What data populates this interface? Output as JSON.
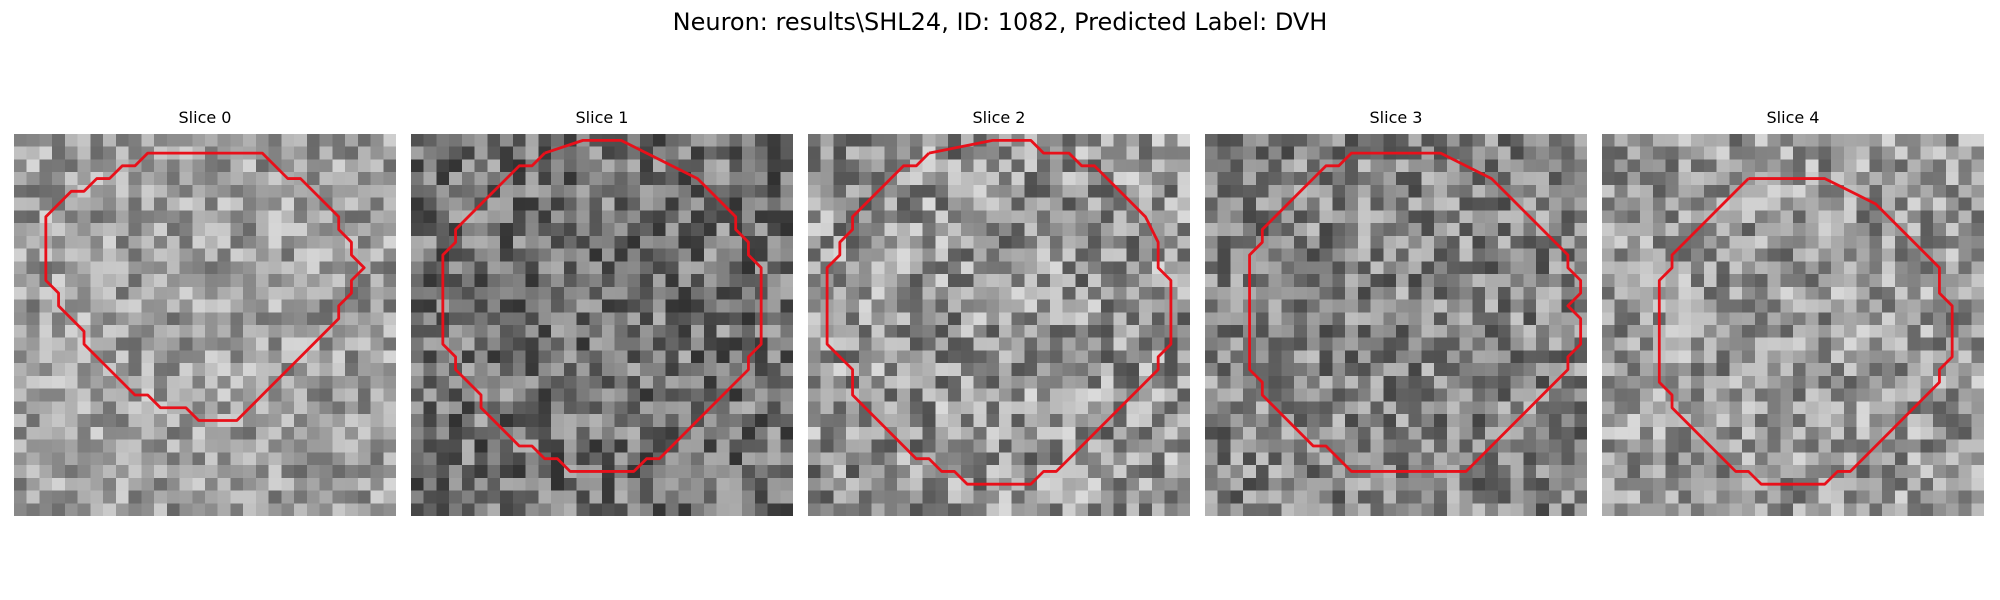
{
  "figure": {
    "title": "Neuron: results\\SHL24, ID: 1082, Predicted Label: DVH"
  },
  "colors": {
    "contour": "#e8101a",
    "background": "#ffffff"
  },
  "panels": [
    {
      "label": "Slice 0",
      "texture": {
        "mean": 0.62,
        "contrast": 0.22,
        "seed": 11
      },
      "contour": [
        [
          13,
          1
        ],
        [
          19,
          1
        ],
        [
          21,
          3
        ],
        [
          22,
          3
        ],
        [
          24,
          5
        ],
        [
          25,
          6
        ],
        [
          25,
          7
        ],
        [
          26,
          8
        ],
        [
          26,
          9
        ],
        [
          27,
          10
        ],
        [
          26,
          11
        ],
        [
          26,
          12
        ],
        [
          25,
          13
        ],
        [
          25,
          14
        ],
        [
          24,
          15
        ],
        [
          23,
          16
        ],
        [
          22,
          17
        ],
        [
          21,
          18
        ],
        [
          20,
          19
        ],
        [
          19,
          20
        ],
        [
          18,
          21
        ],
        [
          17,
          22
        ],
        [
          14,
          22
        ],
        [
          13,
          21
        ],
        [
          11,
          21
        ],
        [
          10,
          20
        ],
        [
          9,
          20
        ],
        [
          8,
          19
        ],
        [
          7,
          18
        ],
        [
          6,
          17
        ],
        [
          5,
          16
        ],
        [
          5,
          15
        ],
        [
          4,
          14
        ],
        [
          3,
          13
        ],
        [
          3,
          12
        ],
        [
          2,
          11
        ],
        [
          2,
          6
        ],
        [
          3,
          5
        ],
        [
          4,
          4
        ],
        [
          5,
          4
        ],
        [
          6,
          3
        ],
        [
          7,
          3
        ],
        [
          8,
          2
        ],
        [
          9,
          2
        ],
        [
          10,
          1
        ],
        [
          13,
          1
        ]
      ]
    },
    {
      "label": "Slice 1",
      "texture": {
        "mean": 0.45,
        "contrast": 0.26,
        "seed": 23
      },
      "contour": [
        [
          10,
          1
        ],
        [
          13,
          0
        ],
        [
          16,
          0
        ],
        [
          18,
          1
        ],
        [
          20,
          2
        ],
        [
          22,
          3
        ],
        [
          23,
          4
        ],
        [
          24,
          5
        ],
        [
          25,
          6
        ],
        [
          25,
          7
        ],
        [
          26,
          8
        ],
        [
          26,
          9
        ],
        [
          27,
          10
        ],
        [
          27,
          16
        ],
        [
          26,
          17
        ],
        [
          26,
          18
        ],
        [
          25,
          19
        ],
        [
          24,
          20
        ],
        [
          23,
          21
        ],
        [
          22,
          22
        ],
        [
          21,
          23
        ],
        [
          20,
          24
        ],
        [
          19,
          25
        ],
        [
          18,
          25
        ],
        [
          17,
          26
        ],
        [
          12,
          26
        ],
        [
          11,
          25
        ],
        [
          10,
          25
        ],
        [
          9,
          24
        ],
        [
          8,
          24
        ],
        [
          7,
          23
        ],
        [
          6,
          22
        ],
        [
          5,
          21
        ],
        [
          5,
          20
        ],
        [
          4,
          19
        ],
        [
          3,
          18
        ],
        [
          3,
          17
        ],
        [
          2,
          16
        ],
        [
          2,
          9
        ],
        [
          3,
          8
        ],
        [
          3,
          7
        ],
        [
          4,
          6
        ],
        [
          5,
          5
        ],
        [
          6,
          4
        ],
        [
          7,
          3
        ],
        [
          8,
          2
        ],
        [
          9,
          2
        ],
        [
          10,
          1
        ]
      ]
    },
    {
      "label": "Slice 2",
      "texture": {
        "mean": 0.58,
        "contrast": 0.28,
        "seed": 37
      },
      "contour": [
        [
          9,
          1
        ],
        [
          14,
          0
        ],
        [
          17,
          0
        ],
        [
          18,
          1
        ],
        [
          20,
          1
        ],
        [
          21,
          2
        ],
        [
          22,
          2
        ],
        [
          23,
          3
        ],
        [
          24,
          4
        ],
        [
          25,
          5
        ],
        [
          26,
          6
        ],
        [
          27,
          8
        ],
        [
          27,
          10
        ],
        [
          28,
          11
        ],
        [
          28,
          16
        ],
        [
          27,
          17
        ],
        [
          27,
          18
        ],
        [
          26,
          19
        ],
        [
          25,
          20
        ],
        [
          24,
          21
        ],
        [
          23,
          22
        ],
        [
          22,
          23
        ],
        [
          21,
          24
        ],
        [
          20,
          25
        ],
        [
          19,
          26
        ],
        [
          18,
          26
        ],
        [
          17,
          27
        ],
        [
          12,
          27
        ],
        [
          11,
          26
        ],
        [
          10,
          26
        ],
        [
          9,
          25
        ],
        [
          8,
          25
        ],
        [
          7,
          24
        ],
        [
          6,
          23
        ],
        [
          5,
          22
        ],
        [
          4,
          21
        ],
        [
          3,
          20
        ],
        [
          3,
          18
        ],
        [
          2,
          17
        ],
        [
          1,
          16
        ],
        [
          1,
          10
        ],
        [
          2,
          9
        ],
        [
          2,
          8
        ],
        [
          3,
          7
        ],
        [
          3,
          6
        ],
        [
          4,
          5
        ],
        [
          5,
          4
        ],
        [
          6,
          3
        ],
        [
          7,
          2
        ],
        [
          8,
          2
        ],
        [
          9,
          1
        ]
      ]
    },
    {
      "label": "Slice 3",
      "texture": {
        "mean": 0.52,
        "contrast": 0.26,
        "seed": 53
      },
      "contour": [
        [
          12,
          1
        ],
        [
          18,
          1
        ],
        [
          20,
          2
        ],
        [
          22,
          3
        ],
        [
          23,
          4
        ],
        [
          24,
          5
        ],
        [
          25,
          6
        ],
        [
          26,
          7
        ],
        [
          27,
          8
        ],
        [
          28,
          9
        ],
        [
          28,
          10
        ],
        [
          29,
          11
        ],
        [
          29,
          12
        ],
        [
          28,
          13
        ],
        [
          29,
          14
        ],
        [
          29,
          16
        ],
        [
          28,
          17
        ],
        [
          28,
          18
        ],
        [
          27,
          19
        ],
        [
          26,
          20
        ],
        [
          25,
          21
        ],
        [
          24,
          22
        ],
        [
          23,
          23
        ],
        [
          22,
          24
        ],
        [
          21,
          25
        ],
        [
          20,
          26
        ],
        [
          11,
          26
        ],
        [
          10,
          25
        ],
        [
          9,
          24
        ],
        [
          8,
          24
        ],
        [
          7,
          23
        ],
        [
          6,
          22
        ],
        [
          5,
          21
        ],
        [
          4,
          20
        ],
        [
          4,
          19
        ],
        [
          3,
          18
        ],
        [
          3,
          17
        ],
        [
          3,
          9
        ],
        [
          4,
          8
        ],
        [
          4,
          7
        ],
        [
          5,
          6
        ],
        [
          6,
          5
        ],
        [
          7,
          4
        ],
        [
          8,
          3
        ],
        [
          9,
          2
        ],
        [
          10,
          2
        ],
        [
          11,
          1
        ],
        [
          12,
          1
        ]
      ]
    },
    {
      "label": "Slice 4",
      "texture": {
        "mean": 0.6,
        "contrast": 0.25,
        "seed": 71
      },
      "contour": [
        [
          11,
          3
        ],
        [
          17,
          3
        ],
        [
          19,
          4
        ],
        [
          21,
          5
        ],
        [
          22,
          6
        ],
        [
          23,
          7
        ],
        [
          24,
          8
        ],
        [
          25,
          9
        ],
        [
          26,
          10
        ],
        [
          26,
          12
        ],
        [
          27,
          13
        ],
        [
          27,
          17
        ],
        [
          26,
          18
        ],
        [
          26,
          19
        ],
        [
          25,
          20
        ],
        [
          24,
          21
        ],
        [
          23,
          22
        ],
        [
          22,
          23
        ],
        [
          21,
          24
        ],
        [
          20,
          25
        ],
        [
          19,
          26
        ],
        [
          18,
          26
        ],
        [
          17,
          27
        ],
        [
          12,
          27
        ],
        [
          11,
          26
        ],
        [
          10,
          26
        ],
        [
          9,
          25
        ],
        [
          8,
          24
        ],
        [
          7,
          23
        ],
        [
          6,
          22
        ],
        [
          5,
          21
        ],
        [
          5,
          20
        ],
        [
          4,
          19
        ],
        [
          4,
          11
        ],
        [
          5,
          10
        ],
        [
          5,
          9
        ],
        [
          6,
          8
        ],
        [
          7,
          7
        ],
        [
          8,
          6
        ],
        [
          9,
          5
        ],
        [
          10,
          4
        ],
        [
          11,
          3
        ]
      ]
    }
  ]
}
